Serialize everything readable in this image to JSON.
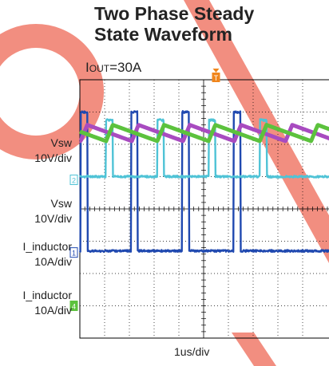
{
  "title_line1": "Two Phase Steady",
  "title_line2": "State Waveform",
  "condition": {
    "prefix": "I",
    "subscript": "OUT",
    "suffix": "=30A"
  },
  "channels": [
    {
      "name": "Vsw",
      "scale": "10V/div",
      "marker": "1",
      "color": "#2049b0"
    },
    {
      "name": "Vsw",
      "scale": "10V/div",
      "marker": "2",
      "color": "#4fc3d6"
    },
    {
      "name": "I_inductor",
      "scale": "10A/div",
      "marker": "",
      "color": "#a84bc0"
    },
    {
      "name": "I_inductor",
      "scale": "10A/div",
      "marker": "4",
      "color": "#5cc23d"
    }
  ],
  "trigger_marker": "T",
  "colors": {
    "trigger": "#f0861c",
    "watermark": "#f07a6a",
    "grid": "#000000"
  },
  "chart_data": {
    "type": "line",
    "xlabel": "1us/div",
    "divisions_x": 10,
    "divisions_y": 8,
    "grid": true,
    "series": [
      {
        "name": "Vsw",
        "color": "#2049b0",
        "baseline_div": 5.3,
        "pulse_high_div": 1.0,
        "period_div": 2.07,
        "pulse_starts_div": [
          0.03,
          2.07,
          4.14,
          6.21
        ],
        "pulse_width_div": 0.27
      },
      {
        "name": "Vsw",
        "color": "#4fc3d6",
        "baseline_div": 3.0,
        "pulse_high_div": 1.25,
        "period_div": 2.07,
        "pulse_starts_div": [
          1.06,
          3.13,
          5.2,
          7.27
        ],
        "pulse_width_div": 0.27
      },
      {
        "name": "I_inductor",
        "color": "#a84bc0",
        "center_div": 1.65,
        "pp_div": 0.5,
        "period_div": 2.07,
        "rise_div": 0.27,
        "phase_div": 0.03
      },
      {
        "name": "I_inductor",
        "color": "#5cc23d",
        "center_div": 1.65,
        "pp_div": 0.5,
        "period_div": 2.07,
        "rise_div": 0.27,
        "phase_div": 1.06
      }
    ]
  }
}
